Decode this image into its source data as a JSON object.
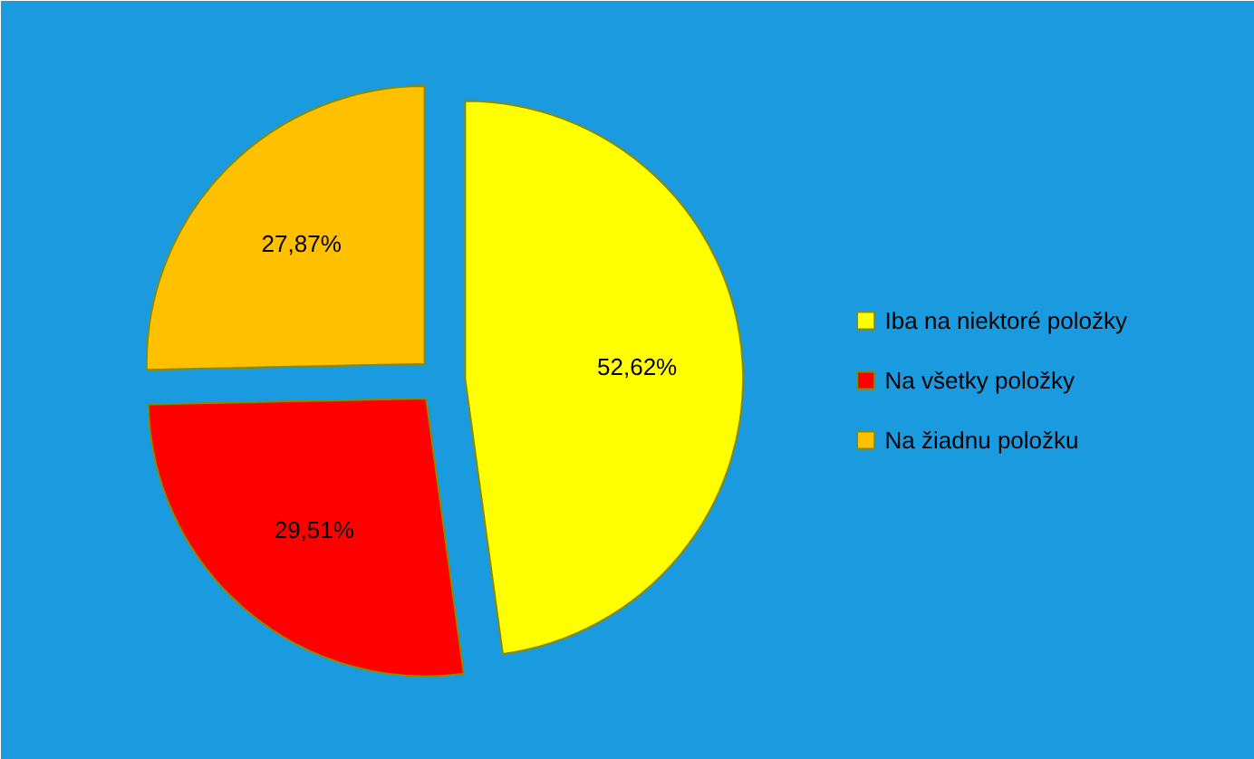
{
  "chart_data": {
    "type": "pie",
    "categories": [
      "Iba na niektoré položky",
      "Na všetky položky",
      "Na žiadnu položku"
    ],
    "values": [
      52.62,
      29.51,
      27.87
    ],
    "colors": [
      "#ffff00",
      "#ff0000",
      "#ffc000"
    ],
    "value_labels": [
      "52,62%",
      "29,51%",
      "27,87%"
    ],
    "legend": "right"
  }
}
